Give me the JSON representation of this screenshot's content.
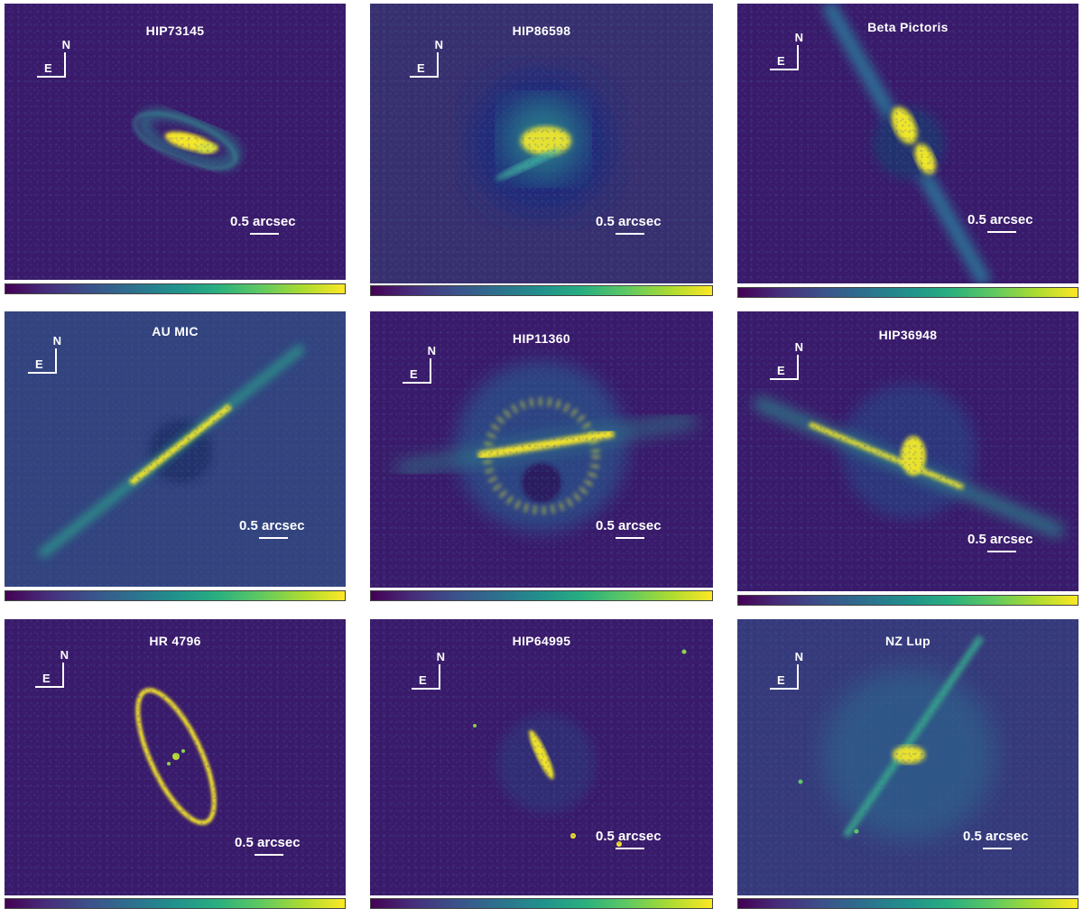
{
  "panels": [
    {
      "title": "HIP73145",
      "north_label": "N",
      "east_label": "E",
      "scale_label": "0.5 arcsec"
    },
    {
      "title": "HIP86598",
      "north_label": "N",
      "east_label": "E",
      "scale_label": "0.5 arcsec"
    },
    {
      "title": "Beta Pictoris",
      "north_label": "N",
      "east_label": "E",
      "scale_label": "0.5 arcsec"
    },
    {
      "title": "AU MIC",
      "north_label": "N",
      "east_label": "E",
      "scale_label": "0.5 arcsec"
    },
    {
      "title": "HIP11360",
      "north_label": "N",
      "east_label": "E",
      "scale_label": "0.5 arcsec"
    },
    {
      "title": "HIP36948",
      "north_label": "N",
      "east_label": "E",
      "scale_label": "0.5 arcsec"
    },
    {
      "title": "HR 4796",
      "north_label": "N",
      "east_label": "E",
      "scale_label": "0.5 arcsec"
    },
    {
      "title": "HIP64995",
      "north_label": "N",
      "east_label": "E",
      "scale_label": "0.5 arcsec"
    },
    {
      "title": "NZ Lup",
      "north_label": "N",
      "east_label": "E",
      "scale_label": "0.5 arcsec"
    }
  ],
  "colormap": "viridis"
}
